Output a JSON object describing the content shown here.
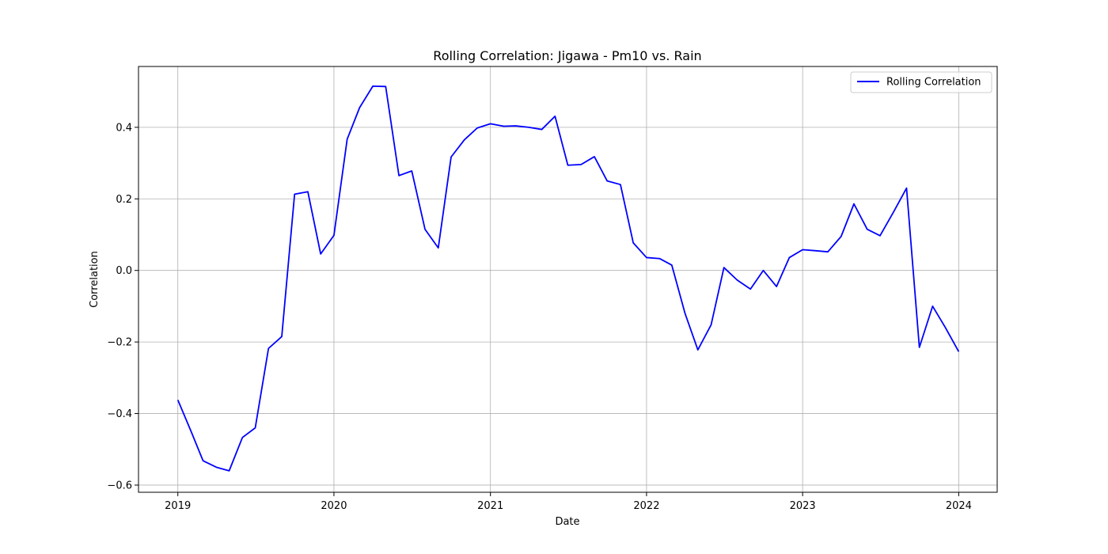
{
  "chart_data": {
    "type": "line",
    "title": "Rolling Correlation: Jigawa - Pm10 vs. Rain",
    "xlabel": "Date",
    "ylabel": "Correlation",
    "xlim": [
      "2018-10-01",
      "2024-03-31"
    ],
    "ylim": [
      -0.62,
      0.57
    ],
    "xticks": [
      {
        "date": "2019-01-01",
        "label": "2019"
      },
      {
        "date": "2020-01-01",
        "label": "2020"
      },
      {
        "date": "2021-01-01",
        "label": "2021"
      },
      {
        "date": "2022-01-01",
        "label": "2022"
      },
      {
        "date": "2023-01-01",
        "label": "2023"
      },
      {
        "date": "2024-01-01",
        "label": "2024"
      }
    ],
    "yticks": [
      -0.6,
      -0.4,
      -0.2,
      0.0,
      0.2,
      0.4
    ],
    "ytick_labels": [
      "−0.6",
      "−0.4",
      "−0.2",
      "0.0",
      "0.2",
      "0.4"
    ],
    "grid": true,
    "legend_position": "top-right",
    "series": [
      {
        "name": "Rolling Correlation",
        "color": "#0000ff",
        "x": [
          "2019-01-01",
          "2019-02-01",
          "2019-03-01",
          "2019-04-01",
          "2019-05-01",
          "2019-06-01",
          "2019-07-01",
          "2019-08-01",
          "2019-09-01",
          "2019-10-01",
          "2019-11-01",
          "2019-12-01",
          "2020-01-01",
          "2020-02-01",
          "2020-03-01",
          "2020-04-01",
          "2020-05-01",
          "2020-06-01",
          "2020-07-01",
          "2020-08-01",
          "2020-09-01",
          "2020-10-01",
          "2020-11-01",
          "2020-12-01",
          "2021-01-01",
          "2021-02-01",
          "2021-03-01",
          "2021-04-01",
          "2021-05-01",
          "2021-06-01",
          "2021-07-01",
          "2021-08-01",
          "2021-09-01",
          "2021-10-01",
          "2021-11-01",
          "2021-12-01",
          "2022-01-01",
          "2022-02-01",
          "2022-03-01",
          "2022-04-01",
          "2022-05-01",
          "2022-06-01",
          "2022-07-01",
          "2022-08-01",
          "2022-09-01",
          "2022-10-01",
          "2022-11-01",
          "2022-12-01",
          "2023-01-01",
          "2023-02-01",
          "2023-03-01",
          "2023-04-01",
          "2023-05-01",
          "2023-06-01",
          "2023-07-01",
          "2023-08-01",
          "2023-09-01",
          "2023-10-01",
          "2023-11-01",
          "2023-12-01",
          "2024-01-01"
        ],
        "values": [
          -0.362,
          -0.45,
          -0.532,
          -0.55,
          -0.56,
          -0.467,
          -0.44,
          -0.218,
          -0.185,
          0.213,
          0.22,
          0.046,
          0.098,
          0.367,
          0.455,
          0.515,
          0.514,
          0.265,
          0.278,
          0.115,
          0.063,
          0.317,
          0.365,
          0.398,
          0.41,
          0.403,
          0.404,
          0.4,
          0.394,
          0.431,
          0.294,
          0.296,
          0.318,
          0.25,
          0.24,
          0.077,
          0.036,
          0.033,
          0.015,
          -0.12,
          -0.222,
          -0.152,
          0.008,
          -0.027,
          -0.052,
          0.0,
          -0.045,
          0.036,
          0.058,
          0.055,
          0.052,
          0.095,
          0.186,
          0.115,
          0.097,
          0.162,
          0.23,
          -0.215,
          -0.1,
          -0.16,
          -0.227
        ]
      }
    ]
  }
}
